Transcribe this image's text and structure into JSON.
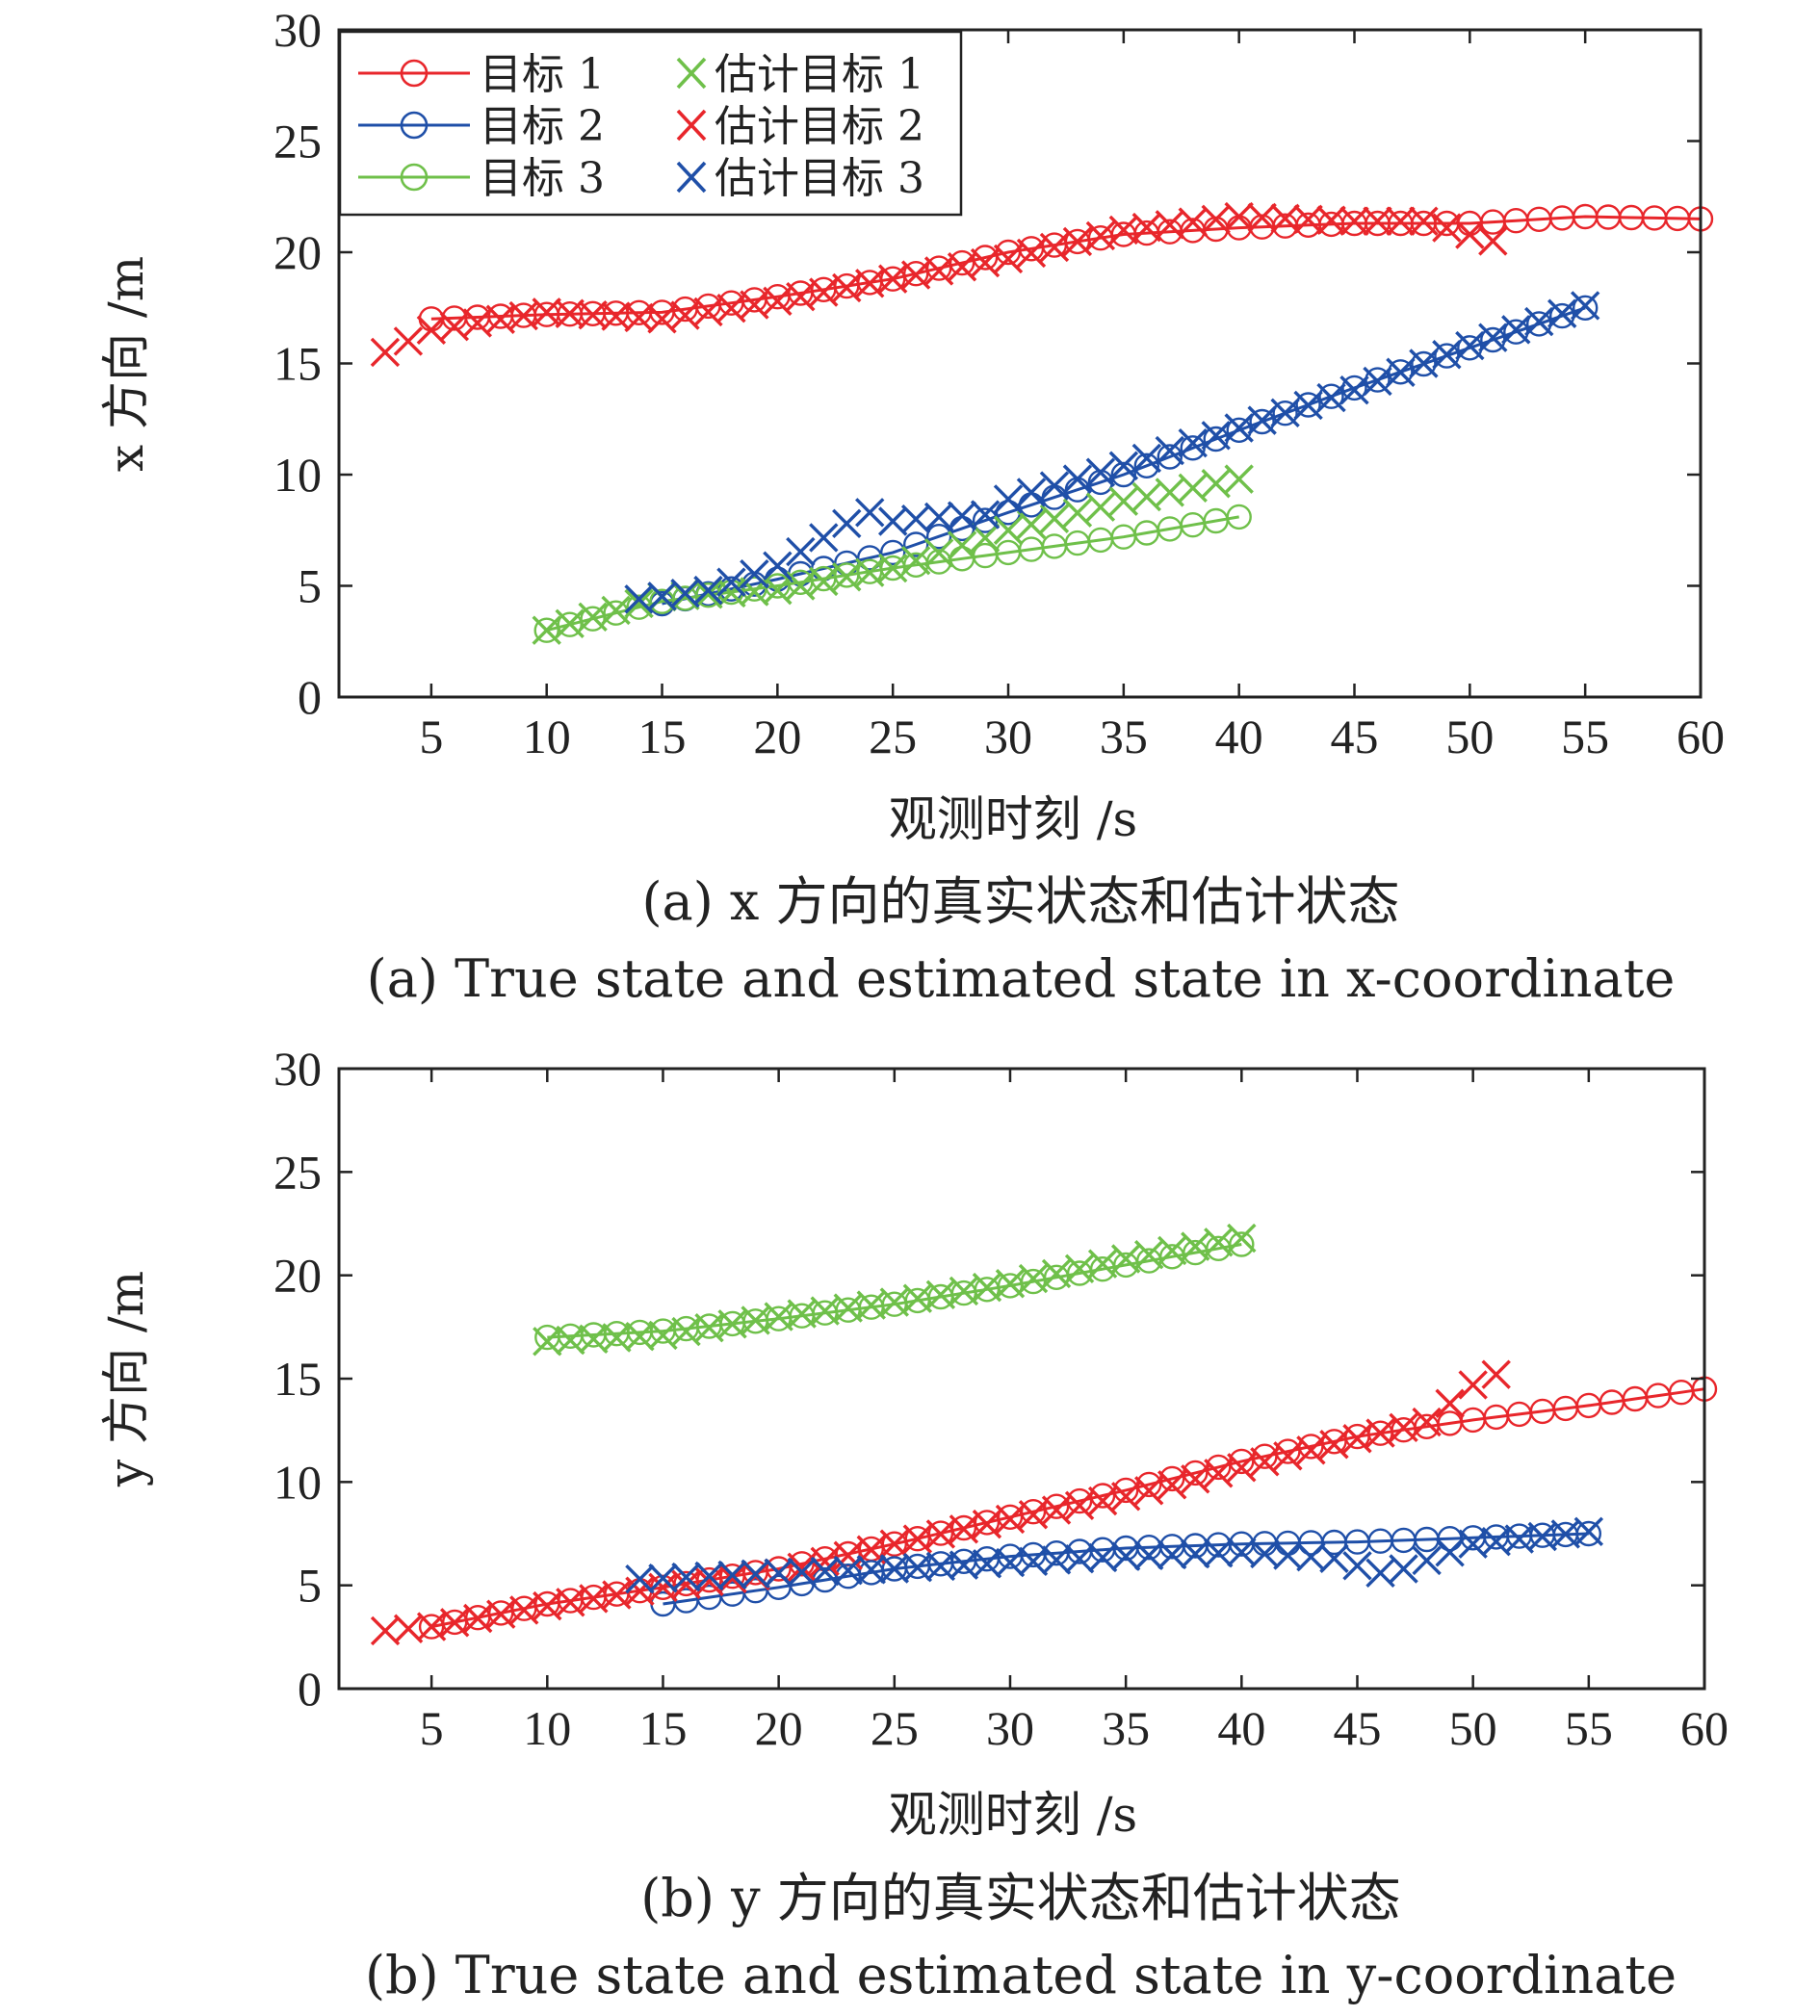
{
  "chart_data": [
    {
      "type": "line",
      "ylabel": "x 方向 /m",
      "xlabel": "观测时刻 /s",
      "caption_cn": "(a) x 方向的真实状态和估计状态",
      "caption_en": "(a) True state and estimated state in x-coordinate",
      "xlim": [
        1,
        60
      ],
      "ylim": [
        0,
        30
      ],
      "xticks": [
        "5",
        "10",
        "15",
        "20",
        "25",
        "30",
        "35",
        "40",
        "45",
        "50",
        "55",
        "60"
      ],
      "yticks": [
        "0",
        "5",
        "10",
        "15",
        "20",
        "25",
        "30"
      ],
      "grid": false,
      "legend_position": "top-left",
      "series": [
        {
          "name": "目标 1",
          "kind": "true",
          "marker": "circle",
          "color": "#e8262b",
          "x": [
            5,
            10,
            15,
            20,
            25,
            30,
            35,
            40,
            45,
            50,
            55,
            60
          ],
          "y": [
            17.0,
            17.2,
            17.3,
            18.0,
            18.8,
            20.0,
            20.8,
            21.1,
            21.3,
            21.3,
            21.6,
            21.5
          ]
        },
        {
          "name": "目标 2",
          "kind": "true",
          "marker": "circle",
          "color": "#1f4fa8",
          "x": [
            15,
            20,
            25,
            30,
            35,
            40,
            45,
            50,
            55
          ],
          "y": [
            4.2,
            5.3,
            6.5,
            8.3,
            10.0,
            12.0,
            13.9,
            15.7,
            17.5
          ]
        },
        {
          "name": "目标 3",
          "kind": "true",
          "marker": "circle",
          "color": "#6fc04a",
          "x": [
            10,
            15,
            20,
            25,
            30,
            35,
            40
          ],
          "y": [
            3.0,
            4.3,
            5.0,
            5.8,
            6.5,
            7.2,
            8.1
          ]
        },
        {
          "name": "估计目标 1",
          "kind": "est",
          "marker": "x",
          "color": "#6fc04a",
          "x": [
            10,
            15,
            20,
            25,
            30,
            35,
            40
          ],
          "y": [
            3.0,
            4.5,
            4.8,
            5.8,
            7.5,
            8.8,
            9.8
          ]
        },
        {
          "name": "估计目标 2",
          "kind": "est",
          "marker": "x",
          "color": "#e8262b",
          "x": [
            3,
            5,
            10,
            15,
            20,
            25,
            30,
            35,
            40,
            45,
            48,
            51
          ],
          "y": [
            15.5,
            16.5,
            17.3,
            17.0,
            17.8,
            18.8,
            19.7,
            21.0,
            21.6,
            21.4,
            21.4,
            20.5
          ]
        },
        {
          "name": "估计目标 3",
          "kind": "est",
          "marker": "x",
          "color": "#1f4fa8",
          "x": [
            14,
            17,
            20,
            23,
            24,
            25,
            27,
            29,
            30,
            35,
            40,
            45,
            50,
            55
          ],
          "y": [
            4.4,
            4.8,
            5.9,
            7.8,
            8.3,
            7.9,
            8.1,
            8.2,
            8.9,
            10.4,
            12.1,
            13.8,
            15.8,
            17.6
          ]
        }
      ]
    },
    {
      "type": "line",
      "ylabel": "y 方向 /m",
      "xlabel": "观测时刻 /s",
      "caption_cn": "(b) y 方向的真实状态和估计状态",
      "caption_en": "(b) True state and estimated state in y-coordinate",
      "xlim": [
        1,
        60
      ],
      "ylim": [
        0,
        30
      ],
      "xticks": [
        "5",
        "10",
        "15",
        "20",
        "25",
        "30",
        "35",
        "40",
        "45",
        "50",
        "55",
        "60"
      ],
      "yticks": [
        "0",
        "5",
        "10",
        "15",
        "20",
        "25",
        "30"
      ],
      "grid": false,
      "series": [
        {
          "name": "目标 1",
          "kind": "true",
          "marker": "circle",
          "color": "#e8262b",
          "x": [
            5,
            10,
            15,
            20,
            25,
            30,
            35,
            40,
            45,
            50,
            55,
            60
          ],
          "y": [
            3.0,
            4.1,
            4.9,
            5.8,
            7.0,
            8.3,
            9.6,
            11.0,
            12.2,
            13.0,
            13.7,
            14.5
          ]
        },
        {
          "name": "目标 2",
          "kind": "true",
          "marker": "circle",
          "color": "#1f4fa8",
          "x": [
            15,
            20,
            25,
            30,
            35,
            40,
            45,
            50,
            55
          ],
          "y": [
            4.1,
            4.9,
            5.8,
            6.4,
            6.8,
            7.0,
            7.1,
            7.3,
            7.5
          ]
        },
        {
          "name": "目标 3",
          "kind": "true",
          "marker": "circle",
          "color": "#6fc04a",
          "x": [
            10,
            15,
            20,
            25,
            30,
            35,
            40
          ],
          "y": [
            17.0,
            17.3,
            17.9,
            18.6,
            19.5,
            20.5,
            21.5
          ]
        },
        {
          "name": "估计目标 1",
          "kind": "est",
          "marker": "x",
          "color": "#6fc04a",
          "x": [
            10,
            15,
            20,
            25,
            30,
            35,
            40
          ],
          "y": [
            16.8,
            17.1,
            18.0,
            18.7,
            19.6,
            20.8,
            21.8
          ]
        },
        {
          "name": "估计目标 2",
          "kind": "est",
          "marker": "x",
          "color": "#e8262b",
          "x": [
            3,
            5,
            10,
            15,
            20,
            25,
            30,
            35,
            40,
            45,
            48,
            50,
            51
          ],
          "y": [
            2.8,
            3.0,
            4.0,
            4.9,
            5.6,
            7.0,
            8.2,
            9.3,
            10.7,
            12.1,
            12.9,
            14.7,
            15.2
          ]
        },
        {
          "name": "估计目标 3",
          "kind": "est",
          "marker": "x",
          "color": "#1f4fa8",
          "x": [
            14,
            20,
            25,
            30,
            35,
            40,
            44,
            46,
            47,
            50,
            55
          ],
          "y": [
            5.3,
            5.6,
            5.8,
            6.1,
            6.4,
            6.6,
            6.3,
            5.6,
            5.8,
            7.0,
            7.6
          ]
        }
      ]
    }
  ]
}
